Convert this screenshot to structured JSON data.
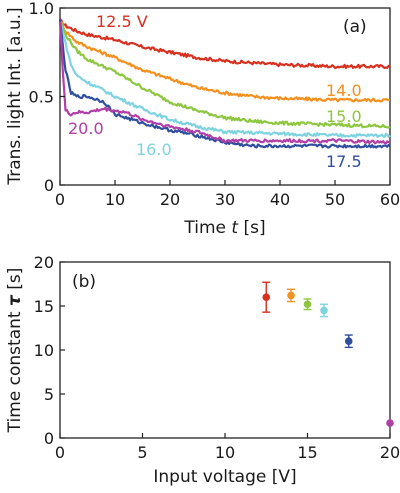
{
  "chart_data": [
    {
      "type": "line",
      "panel_label": "(a)",
      "xlabel_prefix": "Time ",
      "xlabel_var": "t",
      "xlabel_suffix": " [s]",
      "ylabel": "Trans. light Int. [a.u.]",
      "xlim": [
        0,
        60
      ],
      "ylim": [
        0,
        1
      ],
      "x_ticks": [
        "0",
        "10",
        "20",
        "30",
        "40",
        "50",
        "60"
      ],
      "y_ticks": [
        "0",
        "0.5",
        "1.0"
      ],
      "series": [
        {
          "name": "12.5 V",
          "color": "#d7301f",
          "x": [
            0,
            1,
            3,
            5,
            10,
            15,
            20,
            25,
            30,
            35,
            40,
            50,
            60
          ],
          "y": [
            0.93,
            0.9,
            0.87,
            0.85,
            0.82,
            0.78,
            0.75,
            0.72,
            0.7,
            0.69,
            0.68,
            0.67,
            0.67
          ]
        },
        {
          "name": "14.0",
          "color": "#f5901e",
          "x": [
            0,
            1,
            3,
            5,
            10,
            15,
            20,
            25,
            30,
            35,
            40,
            50,
            60
          ],
          "y": [
            0.93,
            0.87,
            0.81,
            0.78,
            0.72,
            0.65,
            0.6,
            0.55,
            0.52,
            0.5,
            0.49,
            0.48,
            0.48
          ]
        },
        {
          "name": "15.0",
          "color": "#8dc63f",
          "x": [
            0,
            1,
            3,
            5,
            10,
            15,
            20,
            25,
            30,
            35,
            40,
            50,
            60
          ],
          "y": [
            0.93,
            0.85,
            0.76,
            0.71,
            0.64,
            0.55,
            0.47,
            0.42,
            0.38,
            0.36,
            0.35,
            0.34,
            0.33
          ]
        },
        {
          "name": "16.0",
          "color": "#7fd3e0",
          "x": [
            0,
            1,
            2,
            3,
            5,
            7,
            10,
            15,
            20,
            25,
            30,
            40,
            50,
            60
          ],
          "y": [
            0.93,
            0.8,
            0.68,
            0.62,
            0.58,
            0.55,
            0.5,
            0.43,
            0.37,
            0.33,
            0.3,
            0.29,
            0.28,
            0.28
          ]
        },
        {
          "name": "17.5",
          "color": "#2f4f9e",
          "x": [
            0,
            1,
            2,
            3,
            5,
            8,
            10,
            15,
            20,
            25,
            30,
            35,
            40,
            50,
            60
          ],
          "y": [
            0.93,
            0.65,
            0.52,
            0.5,
            0.5,
            0.47,
            0.4,
            0.35,
            0.31,
            0.28,
            0.24,
            0.22,
            0.22,
            0.22,
            0.22
          ]
        },
        {
          "name": "20.0",
          "color": "#b03fa8",
          "x": [
            0,
            0.5,
            1,
            2,
            3,
            5,
            8,
            12,
            15,
            20,
            25,
            30,
            40,
            50,
            60
          ],
          "y": [
            0.93,
            0.65,
            0.42,
            0.4,
            0.41,
            0.41,
            0.43,
            0.41,
            0.37,
            0.33,
            0.3,
            0.25,
            0.25,
            0.25,
            0.24
          ]
        }
      ]
    },
    {
      "type": "scatter",
      "panel_label": "(b)",
      "xlabel": "Input voltage [V]",
      "ylabel_prefix": "Time constant ",
      "ylabel_var": "τ",
      "ylabel_suffix": " [s]",
      "xlim": [
        0,
        20
      ],
      "ylim": [
        0,
        20
      ],
      "x_ticks": [
        "0",
        "5",
        "10",
        "15",
        "20"
      ],
      "y_ticks": [
        "0",
        "5",
        "10",
        "15",
        "20"
      ],
      "points": [
        {
          "x": 12.5,
          "y": 16.0,
          "err": 1.7,
          "color": "#d7301f"
        },
        {
          "x": 14.0,
          "y": 16.2,
          "err": 0.7,
          "color": "#f5901e"
        },
        {
          "x": 15.0,
          "y": 15.2,
          "err": 0.6,
          "color": "#8dc63f"
        },
        {
          "x": 16.0,
          "y": 14.5,
          "err": 0.7,
          "color": "#7fd3e0"
        },
        {
          "x": 17.5,
          "y": 11.0,
          "err": 0.7,
          "color": "#2f4f9e"
        },
        {
          "x": 20.0,
          "y": 1.7,
          "err": 0.0,
          "color": "#b03fa8"
        }
      ]
    }
  ]
}
